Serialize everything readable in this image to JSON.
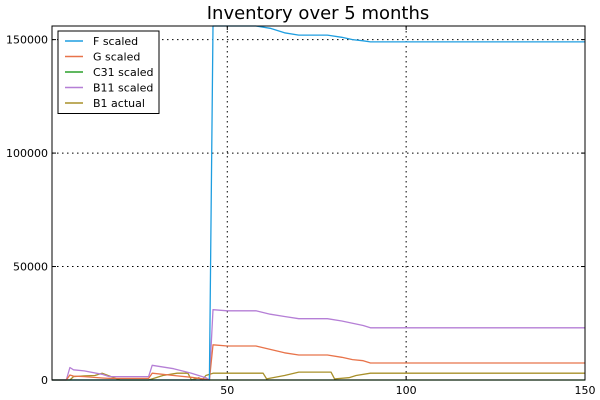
{
  "chart_data": {
    "type": "line",
    "title": "Inventory over 5 months",
    "xlabel": "",
    "ylabel": "",
    "xlim": [
      1,
      150
    ],
    "ylim": [
      0,
      156000
    ],
    "xticks": [
      50,
      100,
      150
    ],
    "yticks": [
      0,
      50000,
      100000,
      150000
    ],
    "grid": true,
    "legend_position": "top-left",
    "series": [
      {
        "name": "F scaled",
        "color": "#1f9ee0",
        "x": [
          1,
          5,
          6,
          7,
          10,
          15,
          17,
          28,
          29,
          35,
          40,
          44,
          45,
          46,
          50,
          58,
          62,
          66,
          70,
          78,
          82,
          85,
          88,
          90,
          150
        ],
        "y": [
          0,
          0,
          0,
          0,
          0,
          0,
          0,
          0,
          0,
          0,
          0,
          0,
          0,
          156000,
          156000,
          156000,
          155000,
          153000,
          152000,
          152000,
          151000,
          150000,
          149500,
          149000,
          149000
        ]
      },
      {
        "name": "G scaled",
        "color": "#e8734a",
        "x": [
          1,
          5,
          6,
          7,
          10,
          15,
          17,
          28,
          29,
          35,
          40,
          44,
          45,
          46,
          50,
          58,
          62,
          66,
          70,
          78,
          82,
          85,
          88,
          90,
          150
        ],
        "y": [
          0,
          0,
          2200,
          1700,
          1500,
          900,
          700,
          700,
          3000,
          2000,
          1200,
          300,
          0,
          15500,
          15000,
          15000,
          13500,
          12000,
          11000,
          11000,
          10000,
          9000,
          8500,
          7500,
          7500
        ]
      },
      {
        "name": "C31 scaled",
        "color": "#2ca02c",
        "x": [
          1,
          150
        ],
        "y": [
          0,
          0
        ]
      },
      {
        "name": "B11 scaled",
        "color": "#b57fd6",
        "x": [
          1,
          5,
          6,
          7,
          10,
          15,
          17,
          28,
          29,
          35,
          40,
          44,
          45,
          46,
          50,
          58,
          62,
          66,
          70,
          78,
          82,
          85,
          88,
          90,
          150
        ],
        "y": [
          0,
          0,
          5500,
          4500,
          4000,
          2500,
          1500,
          1500,
          6500,
          5000,
          3000,
          1000,
          0,
          31000,
          30500,
          30500,
          29000,
          28000,
          27000,
          27000,
          26000,
          25000,
          24000,
          23000,
          23000
        ]
      },
      {
        "name": "B1 actual",
        "color": "#a8902a",
        "x": [
          1,
          6,
          7,
          10,
          13,
          15,
          20,
          25,
          28,
          32,
          36,
          39,
          40,
          42,
          43,
          44,
          46,
          60,
          61,
          66,
          70,
          79,
          80,
          84,
          86,
          90,
          150
        ],
        "y": [
          0,
          0,
          1500,
          1800,
          2000,
          3000,
          0,
          0,
          0,
          2000,
          3000,
          3000,
          0,
          1000,
          0,
          2000,
          3000,
          3000,
          500,
          2000,
          3500,
          3500,
          500,
          1000,
          2000,
          3000,
          3000
        ]
      }
    ]
  }
}
